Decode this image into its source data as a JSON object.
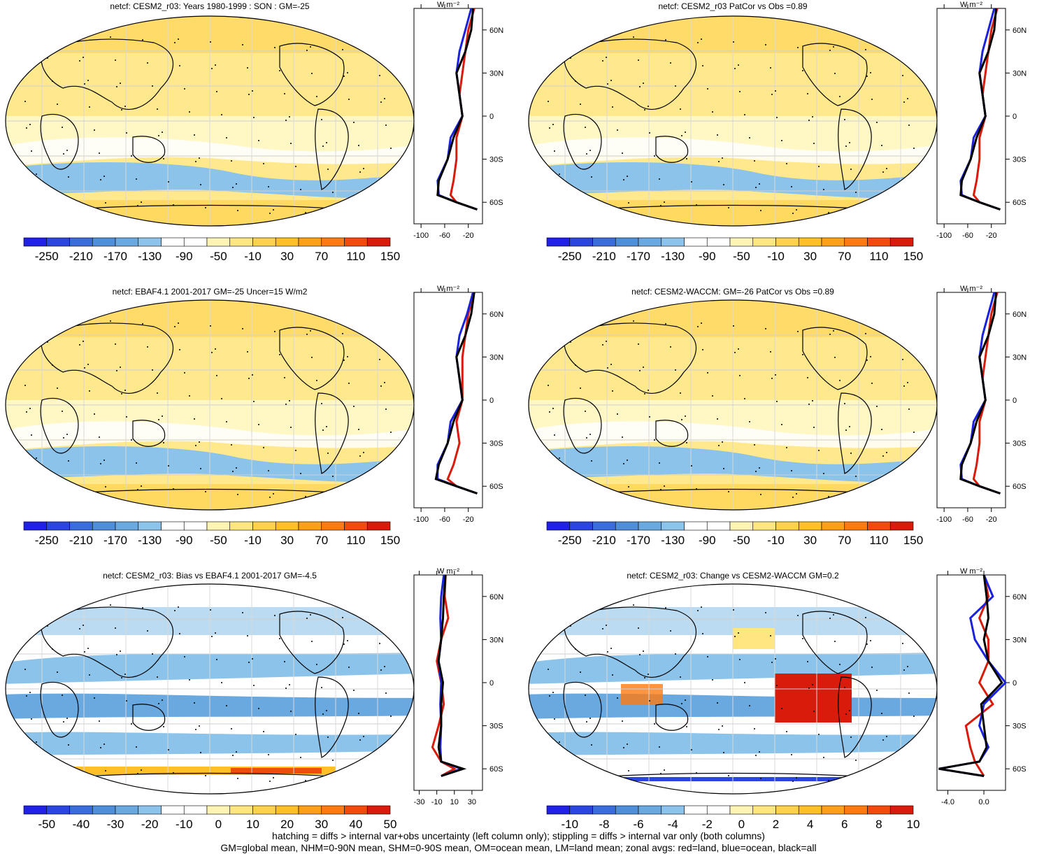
{
  "panels": [
    {
      "title": "netcf: CESM2_r03: Years 1980-1999 : SON : GM=-25",
      "scheme": "abs",
      "colorbar": {
        "labels": [
          "-250",
          "-210",
          "-170",
          "-130",
          "-90",
          "-50",
          "-10",
          "30",
          "70",
          "110",
          "150"
        ]
      },
      "zonal": {
        "unit": "W m⁻²",
        "xticks": [
          "-100",
          "-60",
          "-20"
        ],
        "yticks": [
          "60N",
          "30N",
          "0",
          "30S",
          "60S"
        ]
      }
    },
    {
      "title": "netcf: CESM2_r03 PatCor vs Obs =0.89",
      "scheme": "abs",
      "colorbar": {
        "labels": [
          "-250",
          "-210",
          "-170",
          "-130",
          "-90",
          "-50",
          "-10",
          "30",
          "70",
          "110",
          "150"
        ]
      },
      "zonal": {
        "unit": "W m⁻²",
        "xticks": [
          "-100",
          "-60",
          "-20"
        ],
        "yticks": [
          "60N",
          "30N",
          "0",
          "30S",
          "60S"
        ]
      }
    },
    {
      "title": "netcf: EBAF4.1 2001-2017 GM=-25 Uncer=15 W/m2",
      "scheme": "abs",
      "colorbar": {
        "labels": [
          "-250",
          "-210",
          "-170",
          "-130",
          "-90",
          "-50",
          "-10",
          "30",
          "70",
          "110",
          "150"
        ]
      },
      "zonal": {
        "unit": "W m⁻²",
        "xticks": [
          "-100",
          "-60",
          "-20"
        ],
        "yticks": [
          "60N",
          "30N",
          "0",
          "30S",
          "60S"
        ]
      }
    },
    {
      "title": "netcf: CESM2-WACCM: GM=-26 PatCor vs Obs =0.89",
      "scheme": "abs",
      "colorbar": {
        "labels": [
          "-250",
          "-210",
          "-170",
          "-130",
          "-90",
          "-50",
          "-10",
          "30",
          "70",
          "110",
          "150"
        ]
      },
      "zonal": {
        "unit": "W m⁻²",
        "xticks": [
          "-100",
          "-60",
          "-20"
        ],
        "yticks": [
          "60N",
          "30N",
          "0",
          "30S",
          "60S"
        ]
      }
    },
    {
      "title": "netcf: CESM2_r03: Bias vs EBAF4.1 2001-2017  GM=-4.5",
      "scheme": "diff",
      "colorbar": {
        "labels": [
          "-50",
          "-40",
          "-30",
          "-20",
          "-10",
          "0",
          "10",
          "20",
          "30",
          "40",
          "50"
        ]
      },
      "zonal": {
        "unit": "W m⁻²",
        "xticks": [
          "-30",
          "-10",
          "10",
          "30"
        ],
        "yticks": [
          "60N",
          "30N",
          "0",
          "30S",
          "60S"
        ]
      }
    },
    {
      "title": "netcf: CESM2_r03: Change vs CESM2-WACCM GM=0.2",
      "scheme": "diff",
      "colorbar": {
        "labels": [
          "-10",
          "-8",
          "-6",
          "-4",
          "-2",
          "0",
          "2",
          "4",
          "6",
          "8",
          "10"
        ]
      },
      "zonal": {
        "unit": "W m⁻²",
        "xticks": [
          "-4.0",
          "0.0"
        ],
        "yticks": [
          "60N",
          "30N",
          "0",
          "30S",
          "60S"
        ]
      }
    }
  ],
  "colors": {
    "abs_scale": [
      "#2020e6",
      "#2b46e0",
      "#3a6cdb",
      "#4f8fd9",
      "#6aa8e0",
      "#8cc3ea",
      "#ffffff",
      "#ffffff",
      "#fff4b3",
      "#ffe680",
      "#ffd24d",
      "#ffbf26",
      "#ff9f1a",
      "#ff7a10",
      "#f24a0c",
      "#d81b0b"
    ],
    "diff_scale": [
      "#2020e6",
      "#2b46e0",
      "#3a6cdb",
      "#4f8fd9",
      "#6aa8e0",
      "#8cc3ea",
      "#ffffff",
      "#ffffff",
      "#fff4b3",
      "#ffe680",
      "#ffd24d",
      "#ffbf26",
      "#ff9f1a",
      "#ff7a10",
      "#f24a0c",
      "#d81b0b"
    ],
    "land_line": "#d81b0b",
    "ocean_line": "#1a22dd",
    "all_line": "#000000"
  },
  "chart_data": [
    {
      "type": "heatmap",
      "title": "netcf: CESM2_r03: Years 1980-1999 : SON : GM=-25",
      "units": "W m-2",
      "global_mean": -25,
      "zonal_lat": [
        75,
        60,
        45,
        30,
        15,
        0,
        -15,
        -30,
        -45,
        -55,
        -60,
        -65
      ],
      "zonal_all": [
        -12,
        -15,
        -25,
        -40,
        -35,
        -30,
        -45,
        -55,
        -70,
        -72,
        -40,
        -5
      ],
      "zonal_land": [
        -10,
        -20,
        -25,
        -30,
        -35,
        -30,
        -40,
        -40,
        -45,
        -50,
        -40,
        -5
      ],
      "zonal_ocean": [
        -15,
        -25,
        -35,
        -40,
        -35,
        -30,
        -50,
        -55,
        -72,
        -70,
        -40,
        -5
      ]
    },
    {
      "type": "heatmap",
      "title": "netcf: CESM2_r03 PatCor vs Obs =0.89",
      "units": "W m-2",
      "pattern_correlation": 0.89,
      "zonal_lat": [
        75,
        60,
        45,
        30,
        15,
        0,
        -15,
        -30,
        -45,
        -55,
        -60,
        -65
      ],
      "zonal_all": [
        -12,
        -15,
        -25,
        -40,
        -35,
        -30,
        -45,
        -55,
        -70,
        -72,
        -40,
        -5
      ],
      "zonal_land": [
        -10,
        -20,
        -25,
        -30,
        -35,
        -30,
        -40,
        -40,
        -45,
        -50,
        -40,
        -5
      ],
      "zonal_ocean": [
        -15,
        -25,
        -35,
        -40,
        -35,
        -30,
        -50,
        -55,
        -72,
        -70,
        -40,
        -5
      ]
    },
    {
      "type": "heatmap",
      "title": "netcf: EBAF4.1 2001-2017 GM=-25 Uncer=15 W/m2",
      "units": "W m-2",
      "global_mean": -25,
      "uncertainty": 15,
      "zonal_lat": [
        75,
        60,
        45,
        30,
        15,
        0,
        -15,
        -30,
        -45,
        -55,
        -60,
        -65
      ],
      "zonal_all": [
        -10,
        -15,
        -25,
        -40,
        -35,
        -30,
        -45,
        -55,
        -70,
        -75,
        -40,
        -5
      ],
      "zonal_land": [
        -10,
        -20,
        -25,
        -30,
        -30,
        -30,
        -40,
        -35,
        -45,
        -55,
        -40,
        -5
      ],
      "zonal_ocean": [
        -12,
        -22,
        -35,
        -40,
        -35,
        -30,
        -50,
        -55,
        -72,
        -72,
        -40,
        -5
      ]
    },
    {
      "type": "heatmap",
      "title": "netcf: CESM2-WACCM: GM=-26 PatCor vs Obs =0.89",
      "units": "W m-2",
      "global_mean": -26,
      "pattern_correlation": 0.89,
      "zonal_lat": [
        75,
        60,
        45,
        30,
        15,
        0,
        -15,
        -30,
        -45,
        -55,
        -60,
        -65
      ],
      "zonal_all": [
        -12,
        -15,
        -25,
        -40,
        -35,
        -30,
        -45,
        -55,
        -70,
        -72,
        -40,
        -5
      ],
      "zonal_land": [
        -10,
        -20,
        -25,
        -30,
        -35,
        -30,
        -40,
        -40,
        -45,
        -50,
        -40,
        -5
      ],
      "zonal_ocean": [
        -15,
        -25,
        -35,
        -40,
        -35,
        -30,
        -50,
        -55,
        -72,
        -70,
        -40,
        -5
      ]
    },
    {
      "type": "heatmap",
      "title": "netcf: CESM2_r03: Bias vs EBAF4.1 2001-2017  GM=-4.5",
      "units": "W m-2",
      "global_mean": -4.5,
      "zonal_lat": [
        75,
        60,
        45,
        30,
        15,
        0,
        -15,
        -30,
        -45,
        -55,
        -60,
        -65
      ],
      "zonal_all": [
        0,
        -2,
        -3,
        -5,
        -8,
        -3,
        -5,
        -5,
        -8,
        -5,
        20,
        -5
      ],
      "zonal_land": [
        0,
        -1,
        3,
        -5,
        -10,
        -5,
        -2,
        -8,
        -15,
        -5,
        10,
        -5
      ],
      "zonal_ocean": [
        -2,
        -5,
        -6,
        -5,
        -8,
        -5,
        -6,
        -5,
        -6,
        -5,
        18,
        -5
      ]
    },
    {
      "type": "heatmap",
      "title": "netcf: CESM2_r03: Change vs CESM2-WACCM GM=0.2",
      "units": "W m-2",
      "global_mean": 0.2,
      "zonal_lat": [
        75,
        60,
        45,
        30,
        15,
        0,
        -15,
        -30,
        -45,
        -55,
        -60,
        -65
      ],
      "zonal_all": [
        0,
        0.3,
        0.5,
        0,
        0.5,
        2,
        -0.3,
        0,
        0.3,
        -0.5,
        -5,
        0
      ],
      "zonal_land": [
        0,
        0.5,
        -0.5,
        0.5,
        0.5,
        -0.5,
        1,
        -2,
        -1.5,
        -1,
        -0.5,
        0
      ],
      "zonal_ocean": [
        0,
        1,
        -1.5,
        -1,
        0.5,
        2.5,
        0,
        -0.5,
        0.5,
        -0.5,
        -5,
        0
      ]
    }
  ],
  "footer": {
    "line1": "hatching = diffs > internal var+obs uncertainty (left column only); stippling = diffs > internal var only (both columns)",
    "line2": "GM=global mean, NHM=0-90N mean, SHM=0-90S mean, OM=ocean mean, LM=land mean; zonal avgs: red=land, blue=ocean, black=all"
  }
}
